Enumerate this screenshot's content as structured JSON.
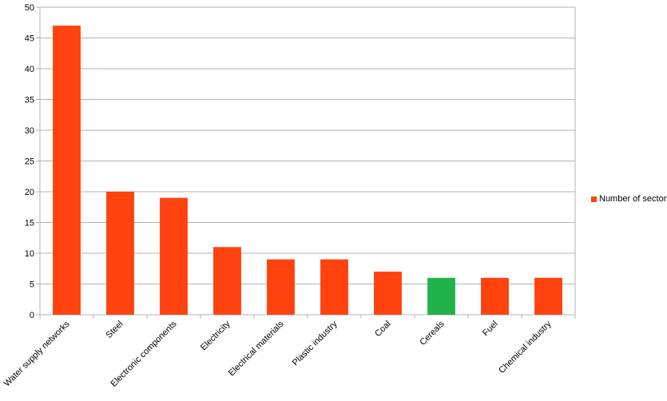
{
  "chart_data": {
    "type": "bar",
    "categories": [
      "Water supply networks",
      "Steel",
      "Electronic components",
      "Electricity",
      "Electrical materials",
      "Plastic industry",
      "Coal",
      "Cereals",
      "Fuel",
      "Chemical industry"
    ],
    "series": [
      {
        "name": "Number of sectors",
        "values": [
          47,
          20,
          19,
          11,
          9,
          9,
          7,
          6,
          6,
          6
        ]
      }
    ],
    "highlight_category": "Cereals",
    "colors": {
      "bar": "#ff420e",
      "highlight": "#21b24b",
      "grid": "#b3b3b3",
      "axis": "#b3b3b3"
    },
    "ylim": [
      0,
      50
    ],
    "yticks": [
      0,
      5,
      10,
      15,
      20,
      25,
      30,
      35,
      40,
      45,
      50
    ],
    "grid": true,
    "legend_position": "right",
    "title": "",
    "xlabel": "",
    "ylabel": ""
  }
}
